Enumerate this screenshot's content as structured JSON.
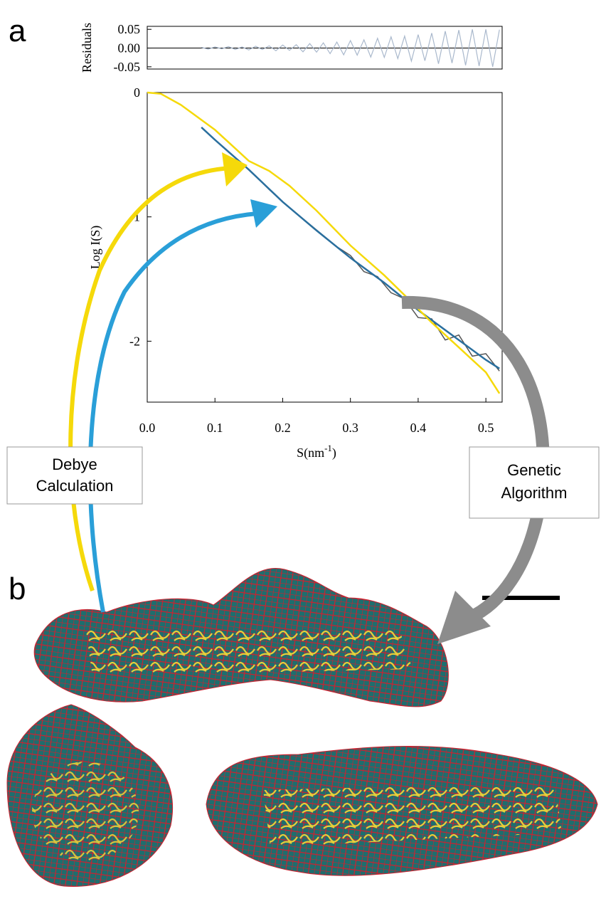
{
  "panel_labels": [
    "a",
    "b"
  ],
  "boxes": [
    [
      "Debye",
      "Calculation"
    ],
    [
      "Genetic",
      "Algorithm"
    ]
  ],
  "chart_data": [
    {
      "type": "line",
      "ylabel": "Residuals",
      "xlim": [
        0,
        0.524
      ],
      "ylim": [
        -0.056,
        0.058
      ],
      "yticks": [
        {
          "value": 0.05,
          "label": "0.05"
        },
        {
          "value": 0,
          "label": "0.00"
        },
        {
          "value": -0.05,
          "label": "-0.05"
        }
      ],
      "x": [
        0.08,
        0.09,
        0.1,
        0.11,
        0.12,
        0.13,
        0.14,
        0.15,
        0.16,
        0.17,
        0.18,
        0.19,
        0.2,
        0.21,
        0.22,
        0.23,
        0.24,
        0.25,
        0.26,
        0.27,
        0.28,
        0.29,
        0.3,
        0.31,
        0.32,
        0.33,
        0.34,
        0.35,
        0.36,
        0.37,
        0.38,
        0.39,
        0.4,
        0.41,
        0.42,
        0.43,
        0.44,
        0.45,
        0.46,
        0.47,
        0.48,
        0.49,
        0.5,
        0.51,
        0.52
      ],
      "series": [
        {
          "color": "#a9b8cc",
          "values": [
            0.002,
            -0.003,
            0.003,
            -0.002,
            0.004,
            -0.004,
            0.003,
            -0.005,
            0.005,
            -0.004,
            0.006,
            -0.007,
            0.008,
            -0.006,
            0.009,
            -0.01,
            0.012,
            -0.011,
            0.014,
            -0.015,
            0.016,
            -0.018,
            0.02,
            -0.019,
            0.022,
            -0.024,
            0.026,
            -0.025,
            0.03,
            -0.028,
            0.032,
            -0.035,
            0.036,
            -0.034,
            0.04,
            -0.042,
            0.045,
            -0.04,
            0.048,
            -0.046,
            0.05,
            -0.048,
            0.05,
            -0.05,
            0.049
          ]
        }
      ]
    },
    {
      "type": "line",
      "ylabel": "Log I(S)",
      "xlabel": {
        "base": "S(nm",
        "sup": "-1",
        "close": ")"
      },
      "xlim": [
        0,
        0.524
      ],
      "ylim": [
        -2.49,
        0
      ],
      "xticks": [
        {
          "value": 0,
          "label": "0.0"
        },
        {
          "value": 0.1,
          "label": "0.1"
        },
        {
          "value": 0.2,
          "label": "0.2"
        },
        {
          "value": 0.3,
          "label": "0.3"
        },
        {
          "value": 0.4,
          "label": "0.4"
        },
        {
          "value": 0.5,
          "label": "0.5"
        }
      ],
      "yticks": [
        0,
        -1,
        -2
      ],
      "series": [
        {
          "color": "#555555",
          "x": [
            0.08,
            0.1,
            0.12,
            0.14,
            0.16,
            0.18,
            0.2,
            0.22,
            0.24,
            0.26,
            0.28,
            0.3,
            0.32,
            0.34,
            0.36,
            0.38,
            0.4,
            0.42,
            0.44,
            0.46,
            0.48,
            0.5,
            0.52
          ],
          "values": [
            -0.28,
            -0.38,
            -0.48,
            -0.57,
            -0.67,
            -0.78,
            -0.88,
            -0.97,
            -1.06,
            -1.15,
            -1.24,
            -1.31,
            -1.44,
            -1.48,
            -1.61,
            -1.66,
            -1.81,
            -1.82,
            -1.99,
            -1.95,
            -2.12,
            -2.1,
            -2.24
          ]
        },
        {
          "color": "#2a6f9e",
          "x": [
            0.08,
            0.1,
            0.15,
            0.2,
            0.25,
            0.3,
            0.35,
            0.4,
            0.45,
            0.5,
            0.52
          ],
          "values": [
            -0.28,
            -0.38,
            -0.62,
            -0.88,
            -1.11,
            -1.33,
            -1.53,
            -1.75,
            -1.95,
            -2.15,
            -2.22
          ]
        },
        {
          "color": "#f5d90a",
          "x": [
            0,
            0.02,
            0.05,
            0.1,
            0.13,
            0.15,
            0.18,
            0.21,
            0.25,
            0.3,
            0.35,
            0.38,
            0.42,
            0.46,
            0.5,
            0.52
          ],
          "values": [
            0,
            -0.01,
            -0.1,
            -0.3,
            -0.45,
            -0.55,
            -0.63,
            -0.75,
            -0.95,
            -1.23,
            -1.47,
            -1.63,
            -1.85,
            -2.05,
            -2.25,
            -2.42
          ]
        }
      ]
    }
  ]
}
